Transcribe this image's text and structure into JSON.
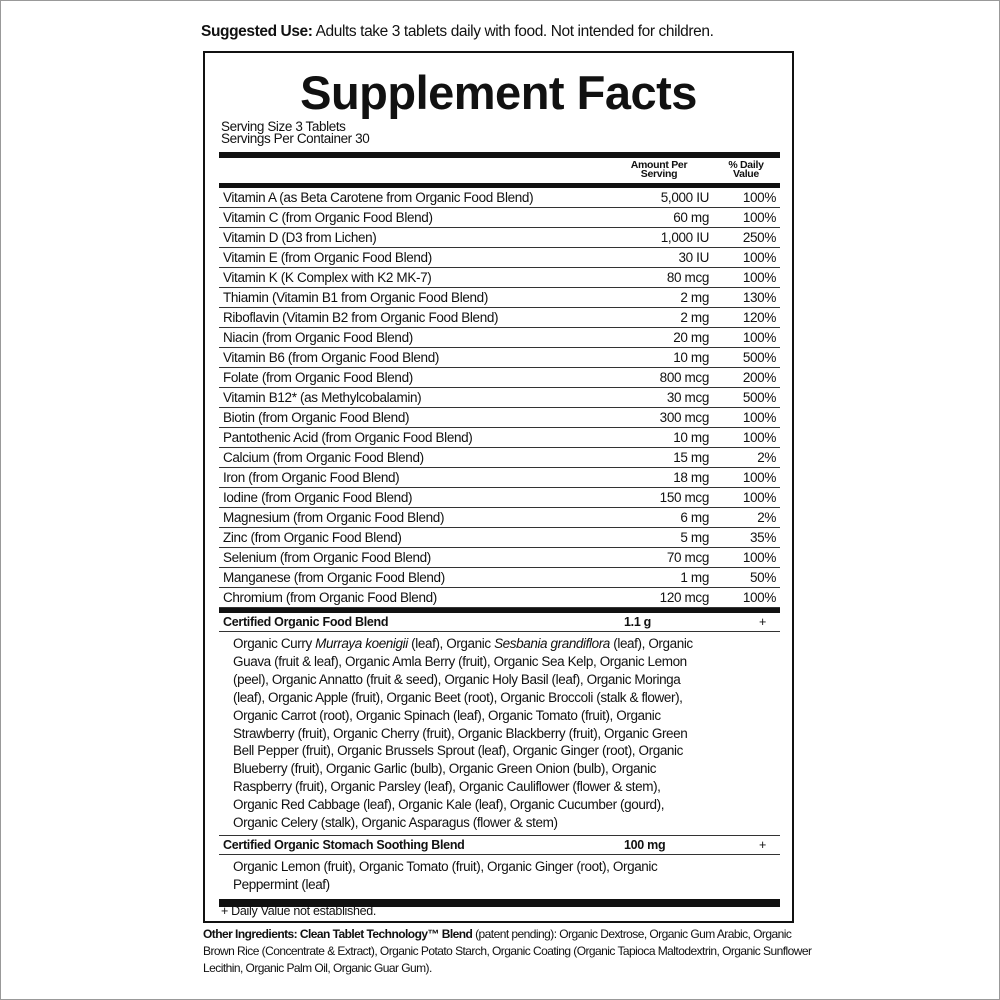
{
  "suggested_use": {
    "label": "Suggested Use:",
    "text": " Adults take 3 tablets daily with food. Not intended for children."
  },
  "title": "Supplement Facts",
  "serving_size": "Serving Size 3 Tablets",
  "servings_per_container": "Servings Per Container 30",
  "header": {
    "amount_1": "Amount Per",
    "amount_2": "Serving",
    "dv_1": "% Daily",
    "dv_2": "Value"
  },
  "nutrients": [
    {
      "name": "Vitamin A (as Beta Carotene from Organic Food Blend)",
      "amount": "5,000 IU",
      "dv": "100%"
    },
    {
      "name": "Vitamin C (from Organic Food Blend)",
      "amount": "60 mg",
      "dv": "100%"
    },
    {
      "name": "Vitamin D (D3 from Lichen)",
      "amount": "1,000 IU",
      "dv": "250%"
    },
    {
      "name": "Vitamin E (from Organic Food Blend)",
      "amount": "30 IU",
      "dv": "100%"
    },
    {
      "name": "Vitamin K (K Complex with K2 MK-7)",
      "amount": "80 mcg",
      "dv": "100%"
    },
    {
      "name": "Thiamin (Vitamin B1 from Organic Food Blend)",
      "amount": "2 mg",
      "dv": "130%"
    },
    {
      "name": "Riboflavin (Vitamin B2 from Organic Food Blend)",
      "amount": "2 mg",
      "dv": "120%"
    },
    {
      "name": "Niacin (from Organic Food Blend)",
      "amount": "20 mg",
      "dv": "100%"
    },
    {
      "name": "Vitamin B6 (from Organic Food Blend)",
      "amount": "10 mg",
      "dv": "500%"
    },
    {
      "name": "Folate (from Organic Food Blend)",
      "amount": "800 mcg",
      "dv": "200%"
    },
    {
      "name": "Vitamin B12* (as Methylcobalamin)",
      "amount": "30 mcg",
      "dv": "500%"
    },
    {
      "name": "Biotin (from Organic Food Blend)",
      "amount": "300 mcg",
      "dv": "100%"
    },
    {
      "name": "Pantothenic Acid (from Organic Food Blend)",
      "amount": "10 mg",
      "dv": "100%"
    },
    {
      "name": "Calcium (from Organic Food Blend)",
      "amount": "15 mg",
      "dv": "2%"
    },
    {
      "name": "Iron (from Organic Food Blend)",
      "amount": "18 mg",
      "dv": "100%"
    },
    {
      "name": "Iodine (from Organic Food Blend)",
      "amount": "150 mcg",
      "dv": "100%"
    },
    {
      "name": "Magnesium (from Organic Food Blend)",
      "amount": "6 mg",
      "dv": "2%"
    },
    {
      "name": "Zinc (from Organic Food Blend)",
      "amount": "5 mg",
      "dv": "35%"
    },
    {
      "name": "Selenium (from Organic Food Blend)",
      "amount": "70 mcg",
      "dv": "100%"
    },
    {
      "name": "Manganese (from Organic Food Blend)",
      "amount": "1 mg",
      "dv": "50%"
    },
    {
      "name": "Chromium (from Organic Food Blend)",
      "amount": "120 mcg",
      "dv": "100%"
    }
  ],
  "food_blend": {
    "name": "Certified Organic Food Blend",
    "amount": "1.1 g",
    "dv": "+",
    "lines": [
      [
        {
          "t": "Organic Curry "
        },
        {
          "t": "Murraya koenigii",
          "i": true
        },
        {
          "t": " (leaf), Organic "
        },
        {
          "t": "Sesbania grandiflora",
          "i": true
        },
        {
          "t": " (leaf), Organic"
        }
      ],
      [
        {
          "t": "Guava (fruit & leaf), Organic Amla Berry (fruit), Organic Sea Kelp, Organic Lemon"
        }
      ],
      [
        {
          "t": "(peel), Organic Annatto (fruit & seed), Organic Holy Basil (leaf), Organic Moringa"
        }
      ],
      [
        {
          "t": "(leaf), Organic Apple (fruit), Organic Beet (root), Organic Broccoli (stalk & flower),"
        }
      ],
      [
        {
          "t": "Organic Carrot (root), Organic Spinach (leaf), Organic Tomato (fruit), Organic"
        }
      ],
      [
        {
          "t": "Strawberry (fruit), Organic Cherry (fruit), Organic Blackberry (fruit), Organic Green"
        }
      ],
      [
        {
          "t": "Bell Pepper (fruit), Organic Brussels Sprout (leaf), Organic Ginger (root), Organic"
        }
      ],
      [
        {
          "t": "Blueberry (fruit), Organic Garlic (bulb), Organic Green Onion (bulb), Organic"
        }
      ],
      [
        {
          "t": "Raspberry (fruit), Organic Parsley (leaf), Organic Cauliflower (flower & stem),"
        }
      ],
      [
        {
          "t": "Organic Red Cabbage (leaf), Organic Kale (leaf), Organic Cucumber (gourd),"
        }
      ],
      [
        {
          "t": "Organic Celery (stalk), Organic Asparagus (flower & stem)"
        }
      ]
    ]
  },
  "stomach_blend": {
    "name": "Certified Organic Stomach Soothing Blend",
    "amount": "100 mg",
    "dv": "+",
    "lines": [
      [
        {
          "t": "Organic Lemon (fruit), Organic Tomato (fruit), Organic Ginger (root), Organic"
        }
      ],
      [
        {
          "t": "Peppermint (leaf)"
        }
      ]
    ]
  },
  "footnote": "+ Daily Value not established.",
  "other_ingredients": {
    "label": "Other Ingredients: Clean Tablet Technology™ Blend",
    "text": " (patent pending): Organic Dextrose, Organic Gum Arabic, Organic Brown Rice (Concentrate & Extract), Organic Potato Starch, Organic Coating (Organic Tapioca Maltodextrin, Organic Sunflower Lecithin, Organic Palm Oil, Organic Guar Gum)."
  }
}
